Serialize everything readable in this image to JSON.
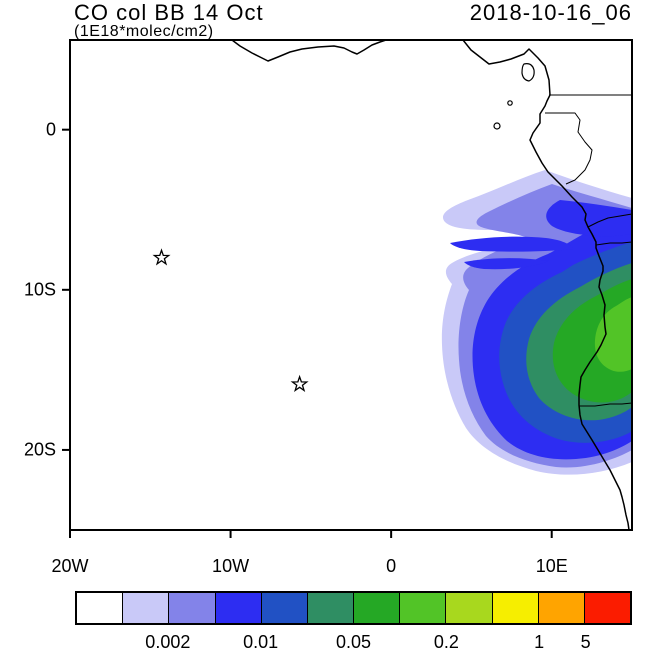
{
  "header": {
    "title": "CO col BB 14 Oct",
    "subtitle": "(1E18*molec/cm2)",
    "datetime": "2018-10-16_06"
  },
  "chart_data": {
    "type": "heatmap",
    "subtype": "filled-contour-map",
    "title": "CO col BB 14 Oct",
    "units": "1E18*molec/cm2",
    "time_label": "2018-10-16_06",
    "x_axis": {
      "tick_labels": [
        "20W",
        "10W",
        "0",
        "10E"
      ],
      "tick_lons_deg": [
        -20,
        -10,
        0,
        10
      ],
      "range_deg": [
        -20,
        15
      ]
    },
    "y_axis": {
      "tick_labels": [
        "0",
        "10S",
        "20S"
      ],
      "tick_lats_deg": [
        0,
        -10,
        -20
      ],
      "range_deg": [
        -25,
        5.6
      ]
    },
    "colorbar": {
      "colors": [
        "#ffffff",
        "#c9c9f8",
        "#8383e9",
        "#2d2df2",
        "#2151c4",
        "#2f8e63",
        "#25a825",
        "#52c427",
        "#a8d81e",
        "#f6ee00",
        "#ffa400",
        "#fb1c00"
      ],
      "labels": [
        "0.002",
        "0.01",
        "0.05",
        "0.2",
        "1",
        "5"
      ],
      "label_boundary_indices": [
        2,
        4,
        6,
        8,
        10,
        11
      ]
    },
    "markers": [
      {
        "shape": "star",
        "lon_deg": -14.3,
        "lat_deg": -8.0
      },
      {
        "shape": "star",
        "lon_deg": -5.7,
        "lat_deg": -15.9
      }
    ],
    "features": "Filled CO-column plume over the SE Atlantic off the west-central African coast between about 3S and 21S; highest values (teal/green shading, ~0.05-1) hug the Angolan coast near 9S-15S, with faint lavender/blue filaments streaming west-northwest; coastline from the Gulf of Guinea to Namibia with country borders; two unlabeled star markers in the open ocean."
  }
}
